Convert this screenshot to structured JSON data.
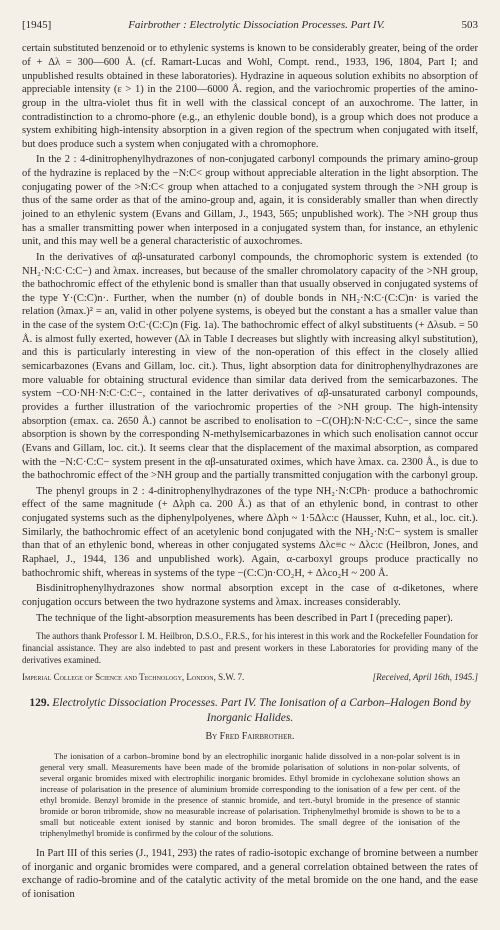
{
  "header": {
    "year": "[1945]",
    "running": "Fairbrother : Electrolytic Dissociation Processes. Part IV.",
    "page": "503"
  },
  "p1": "certain substituted benzenoid or to ethylenic systems is known to be considerably greater, being of the order of + Δλ = 300—600 Å. (cf. Ramart-Lucas and Wohl, Compt. rend., 1933, 196, 1804, Part I; and unpublished results obtained in these laboratories). Hydrazine in aqueous solution exhibits no absorption of appreciable intensity (ε > 1) in the 2100—6000 Å. region, and the variochromic properties of the amino-group in the ultra-violet thus fit in well with the classical concept of an auxochrome. The latter, in contradistinction to a chromo-phore (e.g., an ethylenic double bond), is a group which does not produce a system exhibiting high-intensity absorption in a given region of the spectrum when conjugated with itself, but does produce such a system when conjugated with a chromophore.",
  "p2": "In the 2 : 4-dinitrophenylhydrazones of non-conjugated carbonyl compounds the primary amino-group of the hydrazine is replaced by the −N:C< group without appreciable alteration in the light absorption. The conjugating power of the >N:C< group when attached to a conjugated system through the >NH group is thus of the same order as that of the amino-group and, again, it is considerably smaller than when directly joined to an ethylenic system (Evans and Gillam, J., 1943, 565; unpublished work). The >NH group thus has a smaller transmitting power when interposed in a conjugated system than, for instance, an ethylenic unit, and this may well be a general characteristic of auxochromes.",
  "p3": "In the derivatives of αβ-unsaturated carbonyl compounds, the chromophoric system is extended (to NH₂·N:C·C:C−) and λmax. increases, but because of the smaller chromolatory capacity of the >NH group, the bathochromic effect of the ethylenic bond is smaller than that usually observed in conjugated systems of the type Y·(C:C)n·. Further, when the number (n) of double bonds in NH₂·N:C·(C:C)n· is varied the relation (λmax.)² = an, valid in other polyene systems, is obeyed but the constant a has a smaller value than in the case of the system O:C·(C:C)n (Fig. 1a). The bathochromic effect of alkyl substituents (+ Δλsub. = 50 Å. is almost fully exerted, however (Δλ in Table I decreases but slightly with increasing alkyl substitution), and this is particularly interesting in view of the non-operation of this effect in the closely allied semicarbazones (Evans and Gillam, loc. cit.). Thus, light absorption data for dinitrophenylhydrazones are more valuable for obtaining structural evidence than similar data derived from the semicarbazones. The system −CO·NH·N:C·C:C−, contained in the latter derivatives of αβ-unsaturated carbonyl compounds, provides a further illustration of the variochromic properties of the >NH group. The high-intensity absorption (εmax. ca. 2650 Å.) cannot be ascribed to enolisation to −C(OH):N·N:C·C:C−, since the same absorption is shown by the corresponding N-methylsemicarbazones in which such enolisation cannot occur (Evans and Gillam, loc. cit.). It seems clear that the displacement of the maximal absorption, as compared with the −N:C·C:C− system present in the αβ-unsaturated oximes, which have λmax. ca. 2300 Å., is due to the bathochromic effect of the >NH group and the partially transmitted conjugation with the carbonyl group.",
  "p4": "The phenyl groups in 2 : 4-dinitrophenylhydrazones of the type NH₂·N:CPh· produce a bathochromic effect of the same magnitude (+ Δλph ca. 200 Å.) as that of an ethylenic bond, in contrast to other conjugated systems such as the diphenylpolyenes, where Δλph ~ 1·5Δλc:c (Hausser, Kuhn, et al., loc. cit.). Similarly, the bathochromic effect of an acetylenic bond conjugated with the NH₂·N:C− system is smaller than that of an ethylenic bond, whereas in other conjugated systems Δλc≡c ~ Δλc:c (Heilbron, Jones, and Raphael, J., 1944, 136 and unpublished work). Again, α-carboxyl groups produce practically no bathochromic shift, whereas in systems of the type −(C:C)n·CO₂H, + Δλco₂H ~ 200 Å.",
  "p5": "Bisdinitrophenylhydrazones show normal absorption except in the case of α-diketones, where conjugation occurs between the two hydrazone systems and λmax. increases considerably.",
  "p6": "The technique of the light-absorption measurements has been described in Part I (preceding paper).",
  "ack": "The authors thank Professor I. M. Heilbron, D.S.O., F.R.S., for his interest in this work and the Rockefeller Foundation for financial assistance. They are also indebted to past and present workers in these Laboratories for providing many of the derivatives examined.",
  "affiliation": {
    "left": "Imperial College of Science and Technology, London, S.W. 7.",
    "right": "[Received, April 16th, 1945.]"
  },
  "article": {
    "number": "129.",
    "title": "Electrolytic Dissociation Processes. Part IV. The Ionisation of a Carbon–Halogen Bond by Inorganic Halides.",
    "author": "By Fred Fairbrother."
  },
  "abstract": "The ionisation of a carbon–bromine bond by an electrophilic inorganic halide dissolved in a non-polar solvent is in general very small. Measurements have been made of the bromide polarisation of solutions in non-polar solvents, of several organic bromides mixed with electrophilic inorganic bromides. Ethyl bromide in cyclohexane solution shows an increase of polarisation in the presence of aluminium bromide corresponding to the ionisation of a few per cent. of the ethyl bromide. Benzyl bromide in the presence of stannic bromide, and tert.-butyl bromide in the presence of stannic bromide or boron tribromide, show no measurable increase of polarisation. Triphenylmethyl bromide is shown to be to a small but noticeable extent ionised by stannic and boron bromides. The small degree of the ionisation of the triphenylmethyl bromide is confirmed by the colour of the solutions.",
  "footnote": "In Part III of this series (J., 1941, 293) the rates of radio-isotopic exchange of bromine between a number of inorganic and organic bromides were compared, and a general correlation obtained between the rates of exchange of radio-bromine and of the catalytic activity of the metal bromide on the one hand, and the ease of ionisation"
}
